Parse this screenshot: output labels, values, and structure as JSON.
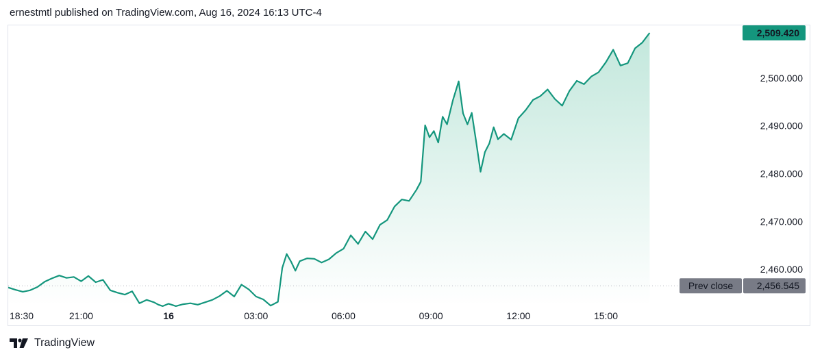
{
  "header": {
    "text": "ernestmtl published on TradingView.com, Aug 16, 2024 16:13 UTC-4"
  },
  "footer": {
    "brand": "TradingView",
    "logo_icon": "tradingview-logo-icon"
  },
  "colors": {
    "line": "#14967d",
    "area_top": "#bfe6da",
    "area_bottom": "#ffffff",
    "last_price_badge": "#14967d",
    "prev_close_badge": "#787b86",
    "prev_close_line": "#b2b5be",
    "axis_text": "#131722"
  },
  "chart_data": {
    "type": "area",
    "ylim": [
      2453,
      2511
    ],
    "y_ticks": [
      "2,460.000",
      "2,470.000",
      "2,480.000",
      "2,490.000",
      "2,500.000"
    ],
    "y_tick_values": [
      2460,
      2470,
      2480,
      2490,
      2500
    ],
    "x_ticks": [
      {
        "label": "18:30",
        "hour": 0,
        "bold": false
      },
      {
        "label": "21:00",
        "hour": 2.5,
        "bold": false
      },
      {
        "label": "16",
        "hour": 5.5,
        "bold": true
      },
      {
        "label": "03:00",
        "hour": 8.5,
        "bold": false
      },
      {
        "label": "06:00",
        "hour": 11.5,
        "bold": false
      },
      {
        "label": "09:00",
        "hour": 14.5,
        "bold": false
      },
      {
        "label": "12:00",
        "hour": 17.5,
        "bold": false
      },
      {
        "label": "15:00",
        "hour": 20.5,
        "bold": false
      }
    ],
    "x_range_hours": [
      0,
      24.2
    ],
    "series": [
      {
        "x": [
          0,
          0.25,
          0.5,
          0.75,
          1.0,
          1.25,
          1.5,
          1.75,
          2.0,
          2.25,
          2.5,
          2.75,
          3.0,
          3.25,
          3.5,
          3.75,
          4.0,
          4.25,
          4.5,
          4.75,
          5.0,
          5.15,
          5.3,
          5.5,
          5.75,
          6.0,
          6.25,
          6.5,
          6.75,
          7.0,
          7.25,
          7.5,
          7.75,
          8.0,
          8.25,
          8.5,
          8.75,
          9.0,
          9.25,
          9.4,
          9.55,
          9.7,
          9.85,
          10.0,
          10.25,
          10.5,
          10.75,
          11.0,
          11.25,
          11.5,
          11.75,
          12.0,
          12.25,
          12.5,
          12.75,
          13.0,
          13.25,
          13.5,
          13.75,
          14.0,
          14.15,
          14.3,
          14.45,
          14.6,
          14.75,
          14.9,
          15.05,
          15.25,
          15.45,
          15.6,
          15.75,
          15.9,
          16.05,
          16.2,
          16.35,
          16.5,
          16.65,
          16.8,
          17.0,
          17.25,
          17.5,
          17.75,
          18.0,
          18.25,
          18.5,
          18.75,
          19.0,
          19.25,
          19.5,
          19.75,
          20.0,
          20.25,
          20.5,
          20.75,
          21.0,
          21.25,
          21.5,
          21.75,
          22.0
        ],
        "y": [
          2456.2,
          2455.7,
          2455.3,
          2455.6,
          2456.3,
          2457.4,
          2458.1,
          2458.7,
          2458.2,
          2458.4,
          2457.5,
          2458.6,
          2457.3,
          2457.8,
          2455.6,
          2455.1,
          2454.7,
          2455.4,
          2452.9,
          2453.6,
          2453.1,
          2452.6,
          2452.3,
          2452.8,
          2452.3,
          2452.7,
          2452.9,
          2452.6,
          2453.1,
          2453.6,
          2454.4,
          2455.5,
          2454.3,
          2456.8,
          2455.8,
          2454.3,
          2453.7,
          2452.4,
          2453.2,
          2460.3,
          2463.2,
          2461.6,
          2459.7,
          2461.7,
          2462.3,
          2462.2,
          2461.4,
          2462.1,
          2463.4,
          2464.3,
          2467.1,
          2465.3,
          2467.9,
          2466.3,
          2469.3,
          2470.3,
          2473.1,
          2474.6,
          2474.3,
          2476.6,
          2478.3,
          2490.1,
          2487.6,
          2488.9,
          2486.5,
          2491.9,
          2490.3,
          2495.3,
          2499.3,
          2492.6,
          2490.3,
          2492.7,
          2486.7,
          2480.4,
          2484.5,
          2486.3,
          2489.7,
          2487.2,
          2488.3,
          2487.1,
          2491.6,
          2493.3,
          2495.4,
          2496.2,
          2497.6,
          2495.6,
          2494.2,
          2497.3,
          2499.4,
          2498.7,
          2500.3,
          2501.2,
          2503.3,
          2505.9,
          2502.6,
          2503.1,
          2506.2,
          2507.4,
          2509.42
        ]
      }
    ],
    "last_price": 2509.42,
    "last_price_label": "2,509.420",
    "prev_close": 2456.545,
    "prev_close_text": "Prev close",
    "prev_close_label": "2,456.545"
  }
}
